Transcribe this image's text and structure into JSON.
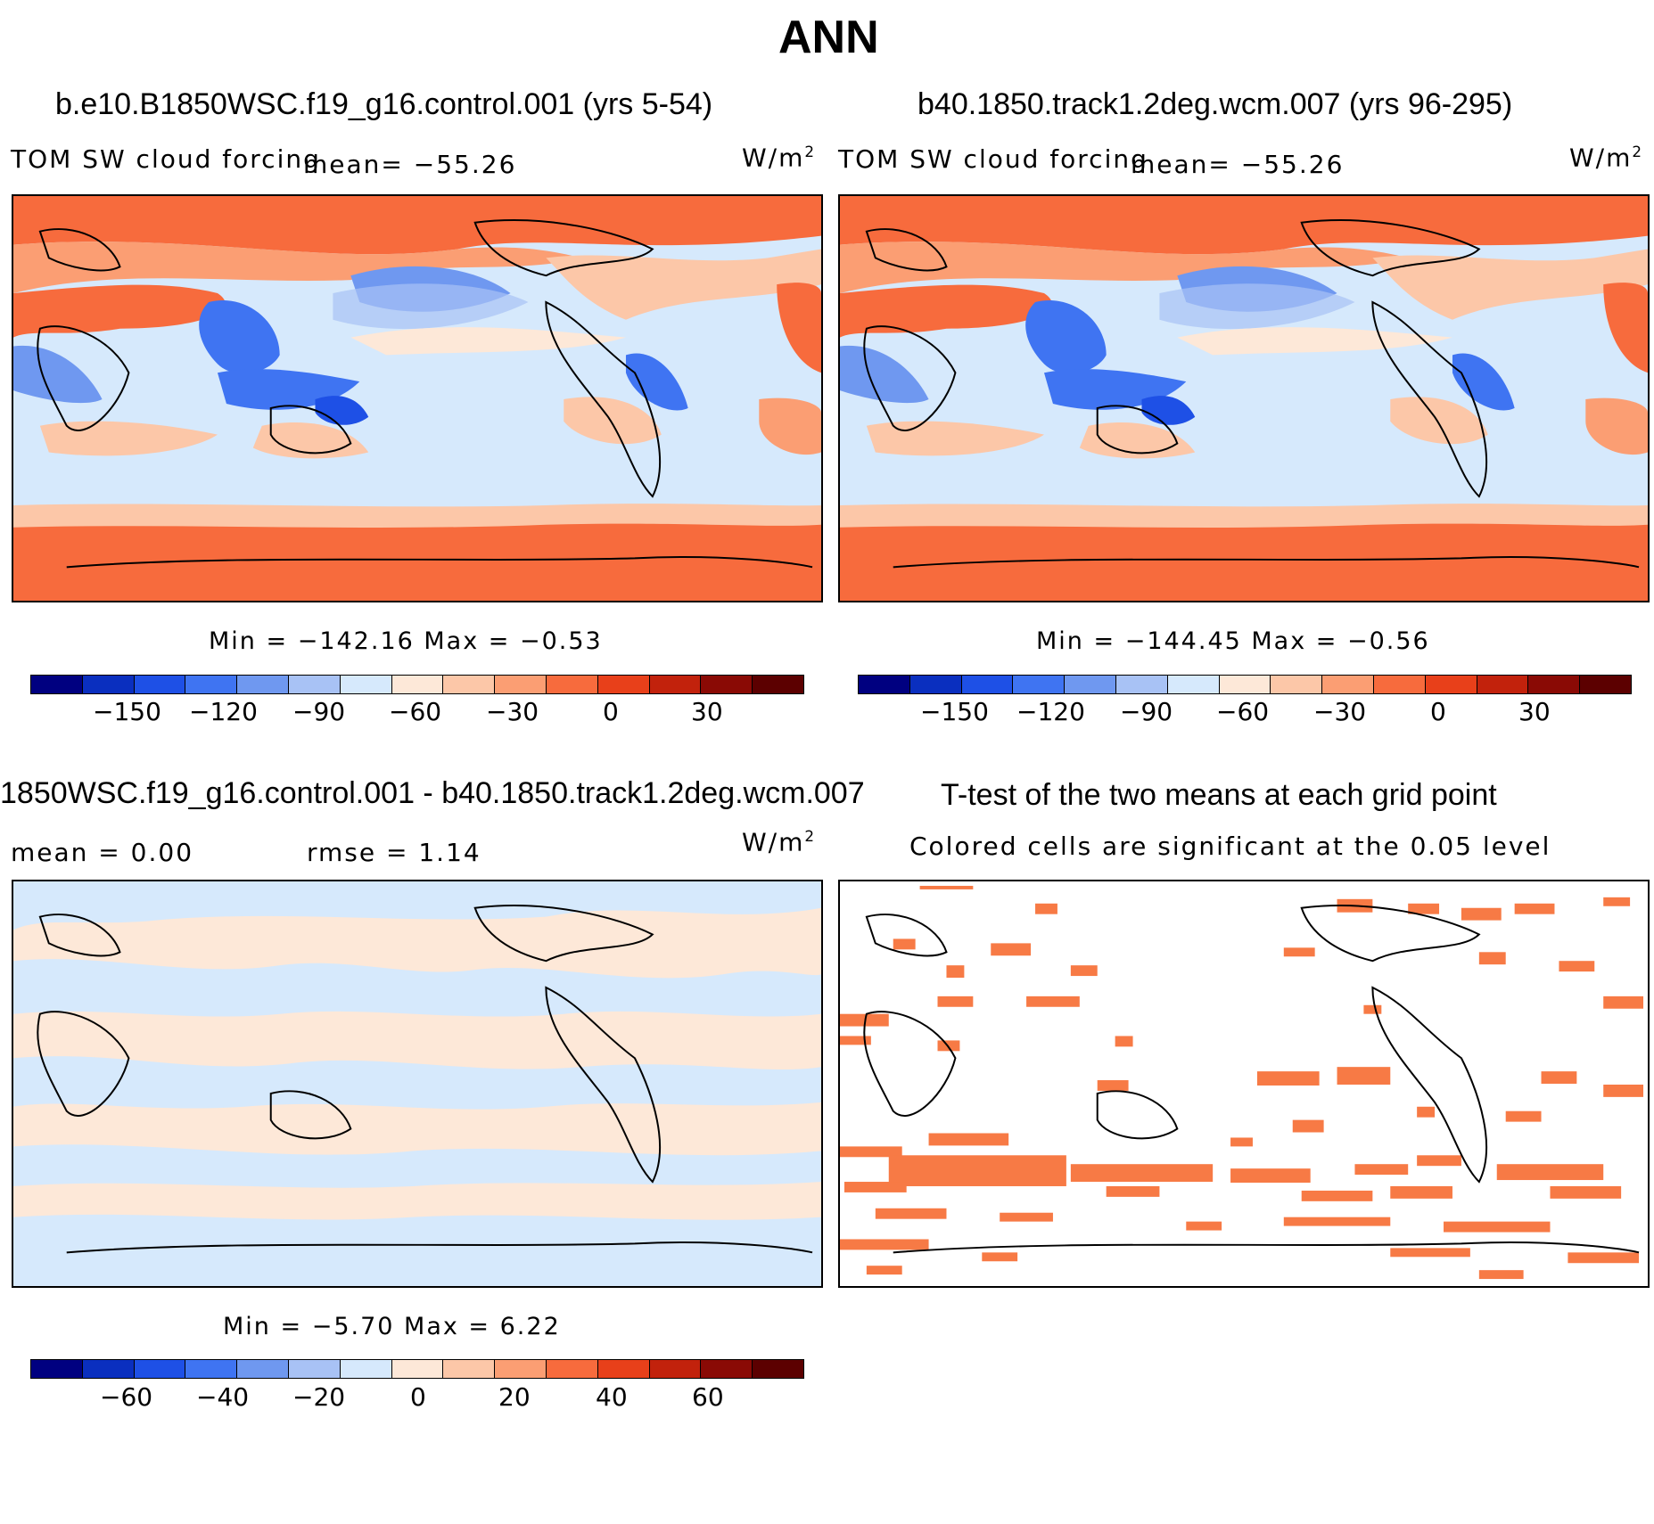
{
  "title": "ANN",
  "panels": [
    {
      "title": "b.e10.B1850WSC.f19_g16.control.001 (yrs 5-54)",
      "variable": "TOM SW cloud forcing",
      "mean_text": "mean= −55.26",
      "units": "W/m",
      "units_exp": "2",
      "minmax": "Min = −142.16 Max =  −0.53"
    },
    {
      "title": "b40.1850.track1.2deg.wcm.007 (yrs 96-295)",
      "variable": "TOM SW cloud forcing",
      "mean_text": "mean= −55.26",
      "units": "W/m",
      "units_exp": "2",
      "minmax": "Min = −144.45 Max =  −0.56"
    },
    {
      "title": "1850WSC.f19_g16.control.001 - b40.1850.track1.2deg.wcm.007",
      "mean_text": "mean =   0.00",
      "rmse_text": "rmse =   1.14",
      "units": "W/m",
      "units_exp": "2",
      "minmax": "Min =  −5.70 Max =   6.22"
    },
    {
      "title": "T-test of the two means at each grid point",
      "subtitle": "Colored cells are significant at the 0.05 level"
    }
  ],
  "colorbar_colors": [
    "#000080",
    "#0a2fbf",
    "#1e50e6",
    "#3f74f2",
    "#6f98f0",
    "#a8c2f5",
    "#d6e9fc",
    "#fde8d8",
    "#fcc7a8",
    "#fb9e73",
    "#f76b3d",
    "#e8401a",
    "#c2220c",
    "#8a0a05",
    "#5c0000"
  ],
  "chart_data": [
    {
      "type": "heatmap",
      "title": "b.e10.B1850WSC.f19_g16.control.001 (yrs 5-54)",
      "variable": "TOM SW cloud forcing",
      "units": "W/m^2",
      "mean": -55.26,
      "min": -142.16,
      "max": -0.53,
      "colorbar_ticks": [
        "−150",
        "−120",
        "−90",
        "−60",
        "−30",
        "0",
        "30"
      ]
    },
    {
      "type": "heatmap",
      "title": "b40.1850.track1.2deg.wcm.007 (yrs 96-295)",
      "variable": "TOM SW cloud forcing",
      "units": "W/m^2",
      "mean": -55.26,
      "min": -144.45,
      "max": -0.56,
      "colorbar_ticks": [
        "−150",
        "−120",
        "−90",
        "−60",
        "−30",
        "0",
        "30"
      ]
    },
    {
      "type": "heatmap",
      "title": "1850WSC.f19_g16.control.001 - b40.1850.track1.2deg.wcm.007",
      "units": "W/m^2",
      "mean": 0.0,
      "rmse": 1.14,
      "min": -5.7,
      "max": 6.22,
      "colorbar_ticks": [
        "−60",
        "−40",
        "−20",
        "0",
        "20",
        "40",
        "60"
      ]
    },
    {
      "type": "heatmap",
      "title": "T-test of the two means at each grid point",
      "subtitle": "Colored cells are significant at the 0.05 level",
      "significance_level": 0.05
    }
  ]
}
